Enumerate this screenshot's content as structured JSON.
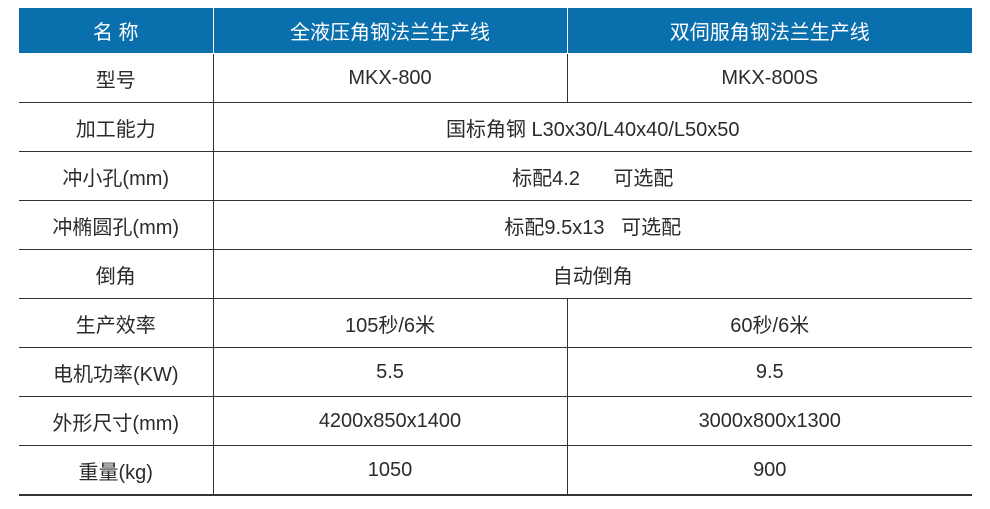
{
  "header_color": "#0a6fad",
  "headers": [
    "名 称",
    "全液压角钢法兰生产线",
    "双伺服角钢法兰生产线"
  ],
  "rows": [
    {
      "label": "型号",
      "values": [
        "MKX-800",
        "MKX-800S"
      ]
    },
    {
      "label": "加工能力",
      "merged": "国标角钢 L30x30/L40x40/L50x50"
    },
    {
      "label": "冲小孔(mm)",
      "merged": "标配4.2      可选配"
    },
    {
      "label": "冲椭圆孔(mm)",
      "merged": "标配9.5x13   可选配"
    },
    {
      "label": "倒角",
      "merged": "自动倒角"
    },
    {
      "label": "生产效率",
      "values": [
        "105秒/6米",
        "60秒/6米"
      ]
    },
    {
      "label": "电机功率(KW)",
      "values": [
        "5.5",
        "9.5"
      ]
    },
    {
      "label": "外形尺寸(mm)",
      "values": [
        "4200x850x1400",
        "3000x800x1300"
      ]
    },
    {
      "label": "重量(kg)",
      "values": [
        "1050",
        "900"
      ]
    }
  ]
}
